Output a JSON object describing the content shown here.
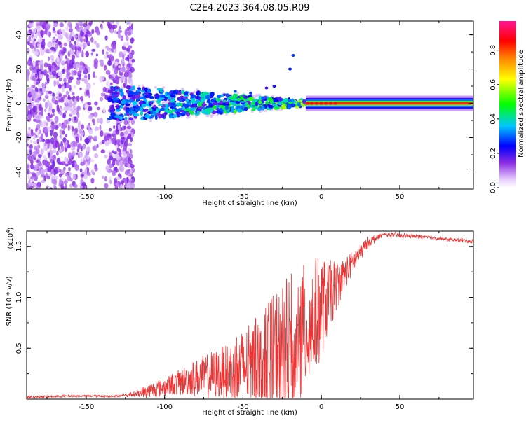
{
  "title": "C2E4.2023.364.08.05.R09",
  "chart_data": [
    {
      "type": "heatmap",
      "xlabel": "Height of straight line (km)",
      "ylabel": "Frequency (Hz)",
      "xlim": [
        -188,
        97
      ],
      "ylim": [
        -50,
        48
      ],
      "xticks": [
        -150,
        -100,
        -50,
        0,
        50
      ],
      "yticks": [
        -40,
        -20,
        0,
        20,
        40
      ],
      "xtick_labels": [
        "-150",
        "-100",
        "-50",
        "0",
        "50"
      ],
      "ytick_labels": [
        "-40",
        "-20",
        "0",
        "20",
        "40"
      ],
      "colorbar": {
        "label": "Normalized spectral amplitude",
        "range": [
          0,
          0.97
        ],
        "ticks": [
          0.0,
          0.2,
          0.4,
          0.6,
          0.8
        ],
        "tick_labels": [
          "0.0",
          "0.2",
          "0.4",
          "0.6",
          "0.8"
        ],
        "colors": [
          "#ffffff",
          "#e6ccff",
          "#8a2be2",
          "#0000ff",
          "#00c8ff",
          "#00ff00",
          "#ffff00",
          "#ff8000",
          "#ff0000",
          "#ff1493"
        ]
      },
      "signal_band": {
        "center_frequency_hz": 0,
        "noise_region_x": [
          -188,
          -120
        ],
        "scatter_region_x": [
          -135,
          -10
        ],
        "stable_region_x": [
          -10,
          97
        ]
      }
    },
    {
      "type": "line",
      "xlabel": "Height of straight line (km)",
      "ylabel": "SNR (10 * v/v)",
      "yscale_label": "(x10",
      "yscale_exp": "4",
      "xlim": [
        -188,
        97
      ],
      "ylim": [
        0,
        16500
      ],
      "xticks": [
        -150,
        -100,
        -50,
        0,
        50
      ],
      "yticks": [
        5000,
        10000,
        15000
      ],
      "xtick_labels": [
        "-150",
        "-100",
        "-50",
        "0",
        "50"
      ],
      "ytick_labels": [
        "0.5",
        "1.0",
        "1.5"
      ],
      "color": "#ee3333",
      "x": [
        -188,
        -160,
        -130,
        -120,
        -110,
        -100,
        -90,
        -80,
        -70,
        -60,
        -50,
        -40,
        -30,
        -20,
        -15,
        -10,
        -5,
        0,
        5,
        10,
        15,
        20,
        25,
        30,
        40,
        50,
        60,
        70,
        80,
        90,
        97
      ],
      "y": [
        200,
        300,
        300,
        500,
        900,
        1300,
        1800,
        2300,
        2600,
        3000,
        3500,
        4200,
        5000,
        5500,
        6500,
        7500,
        8500,
        9500,
        10500,
        11500,
        12500,
        13500,
        14500,
        15500,
        16200,
        16100,
        16000,
        15900,
        15700,
        15600,
        15500
      ],
      "peak_spread": [
        0,
        0,
        0,
        200,
        700,
        900,
        1300,
        1800,
        2300,
        2800,
        3800,
        4500,
        6000,
        7500,
        7000,
        6500,
        6000,
        5000,
        3500,
        2500,
        1500,
        1200,
        800,
        500,
        200,
        200,
        150,
        150,
        150,
        150,
        150
      ]
    }
  ]
}
